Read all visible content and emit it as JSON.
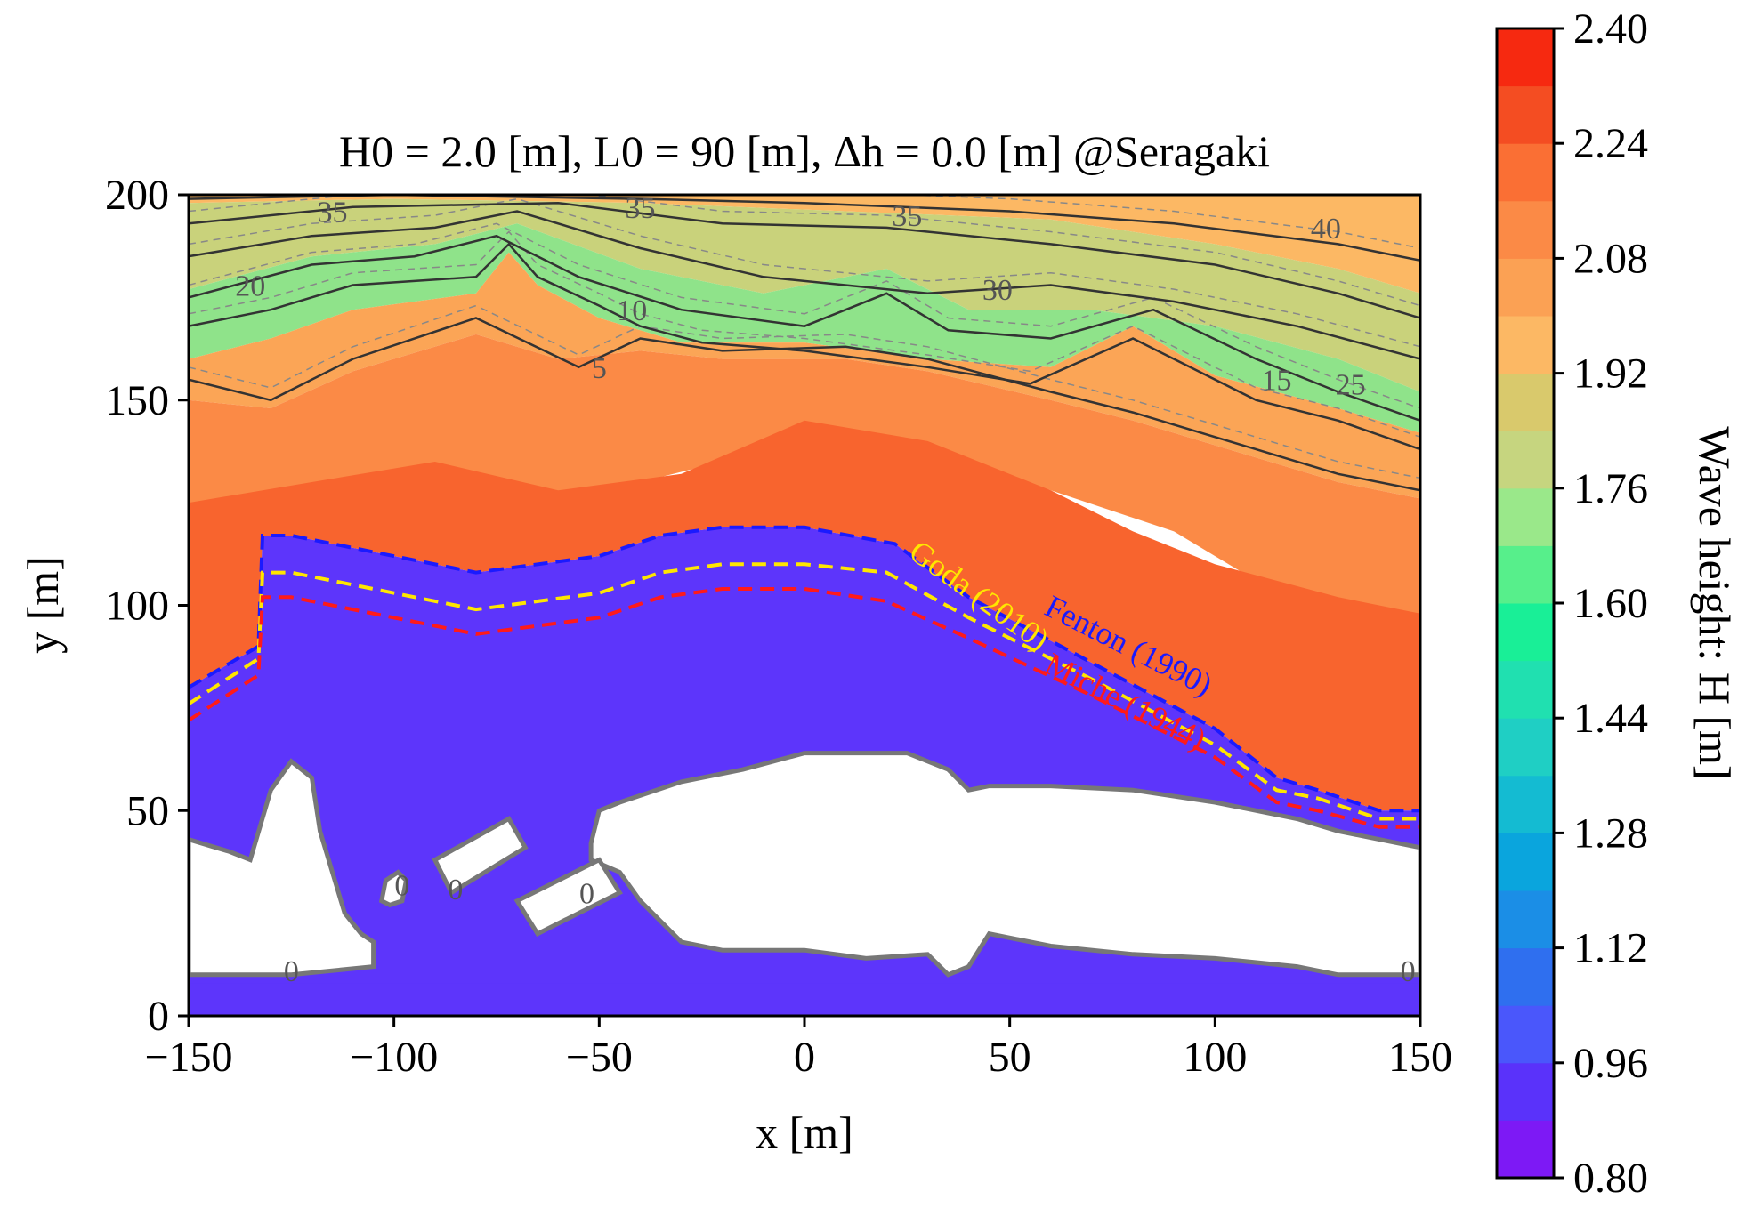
{
  "chart_data": {
    "type": "contourf",
    "title": "H0 = 2.0 [m], L0 = 90 [m], Δh = 0.0 [m] @Seragaki",
    "xlabel": "x [m]",
    "ylabel": "y [m]",
    "xlim": [
      -150,
      150
    ],
    "ylim": [
      0,
      200
    ],
    "xticks": [
      -150,
      -100,
      -50,
      0,
      50,
      100,
      150
    ],
    "yticks": [
      0,
      50,
      100,
      150,
      200
    ],
    "xtick_labels": [
      "−150",
      "−100",
      "−50",
      "0",
      "50",
      "100",
      "150"
    ],
    "ytick_labels": [
      "0",
      "50",
      "100",
      "150",
      "200"
    ],
    "colorbar": {
      "label": "Wave height: H [m]",
      "min": 0.8,
      "max": 2.4,
      "levels": [
        0.8,
        0.88,
        0.96,
        1.04,
        1.12,
        1.2,
        1.28,
        1.36,
        1.44,
        1.52,
        1.6,
        1.68,
        1.76,
        1.84,
        1.92,
        2.0,
        2.08,
        2.16,
        2.24,
        2.32,
        2.4
      ],
      "tick_values": [
        0.8,
        0.96,
        1.12,
        1.28,
        1.44,
        1.6,
        1.76,
        1.92,
        2.08,
        2.24,
        2.4
      ],
      "tick_labels": [
        "0.80",
        "0.96",
        "1.12",
        "1.28",
        "1.44",
        "1.60",
        "1.76",
        "1.92",
        "2.08",
        "2.24",
        "2.40"
      ],
      "colors": [
        "#7d19f5",
        "#5a32fa",
        "#4a57fb",
        "#2f6fef",
        "#1b8ee6",
        "#0aa5dd",
        "#14bbd2",
        "#1fcfc4",
        "#20e0b0",
        "#19ef97",
        "#57ef8b",
        "#9ae88a",
        "#c6d57f",
        "#d9c96c",
        "#fcb864",
        "#fba154",
        "#fb8a46",
        "#fa6f34",
        "#f44d22",
        "#f62910"
      ]
    },
    "breaking_lines": [
      {
        "name": "Fenton (1990)",
        "color": "#1a1aff",
        "points": [
          [
            -150,
            80
          ],
          [
            -133,
            90
          ],
          [
            -132,
            117
          ],
          [
            -125,
            117
          ],
          [
            -80,
            108
          ],
          [
            -50,
            112
          ],
          [
            -35,
            117
          ],
          [
            -20,
            119
          ],
          [
            0,
            119
          ],
          [
            22,
            115
          ],
          [
            40,
            102
          ],
          [
            70,
            86
          ],
          [
            100,
            70
          ],
          [
            115,
            58
          ],
          [
            125,
            55
          ],
          [
            140,
            50
          ],
          [
            150,
            50
          ]
        ]
      },
      {
        "name": "Goda (2010)",
        "color": "#ffe600",
        "points": [
          [
            -150,
            76
          ],
          [
            -133,
            87
          ],
          [
            -132,
            108
          ],
          [
            -125,
            108
          ],
          [
            -80,
            99
          ],
          [
            -50,
            103
          ],
          [
            -35,
            108
          ],
          [
            -20,
            110
          ],
          [
            0,
            110
          ],
          [
            20,
            108
          ],
          [
            40,
            97
          ],
          [
            70,
            82
          ],
          [
            100,
            66
          ],
          [
            115,
            55
          ],
          [
            125,
            53
          ],
          [
            140,
            48
          ],
          [
            150,
            48
          ]
        ]
      },
      {
        "name": "Miche (1944)",
        "color": "#ff1a1a",
        "points": [
          [
            -150,
            72
          ],
          [
            -133,
            83
          ],
          [
            -132,
            102
          ],
          [
            -125,
            102
          ],
          [
            -80,
            93
          ],
          [
            -50,
            97
          ],
          [
            -35,
            102
          ],
          [
            -20,
            104
          ],
          [
            0,
            104
          ],
          [
            20,
            101
          ],
          [
            40,
            92
          ],
          [
            70,
            78
          ],
          [
            100,
            63
          ],
          [
            115,
            52
          ],
          [
            125,
            50
          ],
          [
            140,
            46
          ],
          [
            150,
            46
          ]
        ]
      }
    ],
    "depth_contours": [
      {
        "level": 5,
        "points": [
          [
            -150,
            155
          ],
          [
            -130,
            150
          ],
          [
            -110,
            160
          ],
          [
            -80,
            170
          ],
          [
            -55,
            158
          ],
          [
            -40,
            165
          ],
          [
            -20,
            162
          ],
          [
            10,
            163
          ],
          [
            30,
            160
          ],
          [
            60,
            152
          ],
          [
            80,
            147
          ],
          [
            110,
            138
          ],
          [
            130,
            132
          ],
          [
            150,
            128
          ]
        ]
      },
      {
        "level": 10,
        "points": [
          [
            -150,
            168
          ],
          [
            -130,
            172
          ],
          [
            -110,
            178
          ],
          [
            -80,
            180
          ],
          [
            -72,
            188
          ],
          [
            -65,
            180
          ],
          [
            -50,
            173
          ],
          [
            -40,
            168
          ],
          [
            -25,
            164
          ],
          [
            0,
            162
          ],
          [
            30,
            158
          ],
          [
            55,
            154
          ],
          [
            80,
            165
          ],
          [
            90,
            160
          ],
          [
            110,
            150
          ],
          [
            130,
            145
          ],
          [
            150,
            138
          ]
        ]
      },
      {
        "level": 15,
        "points": [
          [
            -150,
            175
          ],
          [
            -120,
            183
          ],
          [
            -95,
            185
          ],
          [
            -75,
            190
          ],
          [
            -55,
            180
          ],
          [
            -30,
            172
          ],
          [
            0,
            168
          ],
          [
            20,
            176
          ],
          [
            35,
            167
          ],
          [
            60,
            165
          ],
          [
            85,
            172
          ],
          [
            110,
            160
          ],
          [
            130,
            152
          ],
          [
            150,
            145
          ]
        ]
      },
      {
        "level": 20,
        "points": [
          [
            -150,
            185
          ],
          [
            -120,
            190
          ],
          [
            -90,
            192
          ],
          [
            -70,
            196
          ],
          [
            -40,
            187
          ],
          [
            -10,
            180
          ],
          [
            30,
            176
          ],
          [
            60,
            178
          ],
          [
            90,
            174
          ],
          [
            120,
            168
          ],
          [
            150,
            160
          ]
        ]
      },
      {
        "level": 25,
        "points": [
          [
            -150,
            193
          ],
          [
            -110,
            197
          ],
          [
            -60,
            198
          ],
          [
            -20,
            193
          ],
          [
            20,
            192
          ],
          [
            60,
            188
          ],
          [
            100,
            183
          ],
          [
            130,
            176
          ],
          [
            150,
            170
          ]
        ]
      },
      {
        "level": 30,
        "points": [
          [
            -150,
            199
          ],
          [
            -100,
            200
          ],
          [
            -40,
            199
          ],
          [
            0,
            198
          ],
          [
            50,
            196
          ],
          [
            90,
            193
          ],
          [
            130,
            188
          ],
          [
            150,
            184
          ]
        ]
      }
    ],
    "contour_labels": [
      {
        "text": "35",
        "x": -115,
        "y": 196
      },
      {
        "text": "35",
        "x": -40,
        "y": 197
      },
      {
        "text": "35",
        "x": 25,
        "y": 195
      },
      {
        "text": "40",
        "x": 127,
        "y": 192
      },
      {
        "text": "30",
        "x": 47,
        "y": 177
      },
      {
        "text": "20",
        "x": -135,
        "y": 178
      },
      {
        "text": "10",
        "x": -42,
        "y": 172
      },
      {
        "text": "5",
        "x": -50,
        "y": 158
      },
      {
        "text": "15",
        "x": 115,
        "y": 155
      },
      {
        "text": "25",
        "x": 133,
        "y": 154
      },
      {
        "text": "0",
        "x": -125,
        "y": 11
      },
      {
        "text": "0",
        "x": -98,
        "y": 32
      },
      {
        "text": "0",
        "x": -85,
        "y": 31
      },
      {
        "text": "0",
        "x": -53,
        "y": 30
      },
      {
        "text": "0",
        "x": 147,
        "y": 11
      }
    ],
    "curve_labels": [
      {
        "text": "Goda (2010)",
        "color": "#ffe600",
        "x": 25,
        "y": 112,
        "angle": 36
      },
      {
        "text": "Fenton (1990)",
        "color": "#1a1aff",
        "x": 58,
        "y": 98,
        "angle": 27
      },
      {
        "text": "Miche (1944)",
        "color": "#ff1a1a",
        "x": 58,
        "y": 84,
        "angle": 27
      }
    ]
  }
}
